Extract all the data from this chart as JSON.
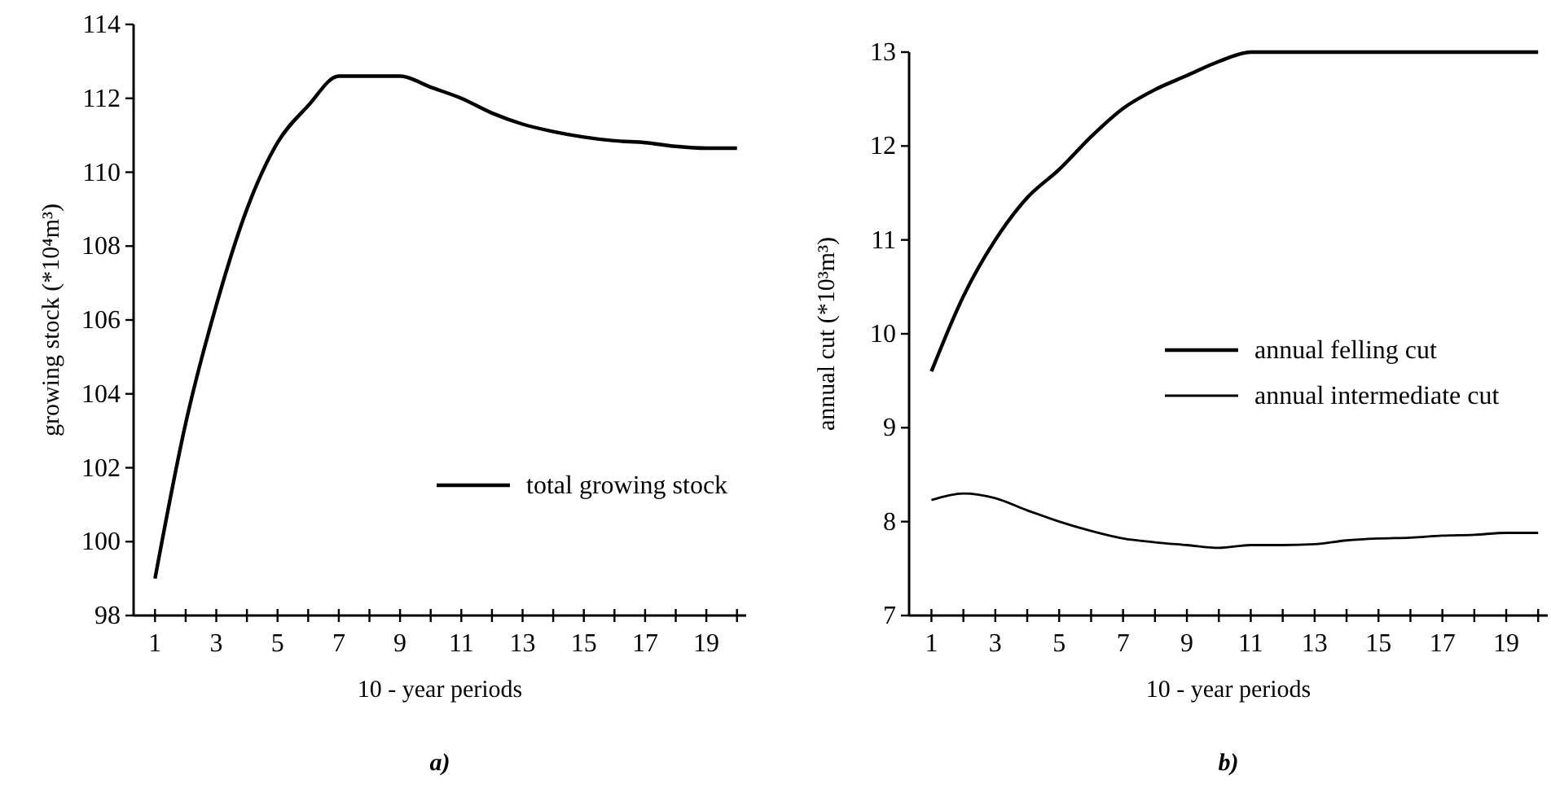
{
  "chart_data": [
    {
      "type": "line",
      "xlabel": "10 - year periods",
      "ylabel": "growing stock (*10⁴m³)",
      "annotations": [
        "a)"
      ],
      "legend": "right",
      "x": [
        1,
        2,
        3,
        4,
        5,
        6,
        7,
        8,
        9,
        10,
        11,
        12,
        13,
        14,
        15,
        16,
        17,
        18,
        19,
        20
      ],
      "xlim": [
        0.3,
        20.3
      ],
      "xticks": [
        1,
        {
          "value": 2,
          "label": null
        },
        3,
        {
          "value": 4,
          "label": null
        },
        5,
        {
          "value": 6,
          "label": null
        },
        7,
        {
          "value": 8,
          "label": null
        },
        9,
        {
          "value": 10,
          "label": null
        },
        11,
        {
          "value": 12,
          "label": null
        },
        13,
        {
          "value": 14,
          "label": null
        },
        15,
        {
          "value": 16,
          "label": null
        },
        17,
        {
          "value": 18,
          "label": null
        },
        19,
        {
          "value": 20,
          "label": null
        }
      ],
      "ylim": [
        98,
        114
      ],
      "yticks": [
        98,
        100,
        102,
        104,
        106,
        108,
        110,
        112,
        114
      ],
      "series": [
        {
          "name": "total growing stock",
          "color": "#000000",
          "values": [
            99.0,
            103.2,
            106.4,
            109.0,
            110.8,
            111.8,
            112.6,
            112.6,
            112.6,
            112.3,
            112.0,
            111.6,
            111.3,
            111.1,
            110.95,
            110.85,
            110.8,
            110.7,
            110.65,
            110.65
          ]
        }
      ]
    },
    {
      "type": "line",
      "xlabel": "10 - year periods",
      "ylabel": "annual cut (*10³m³)",
      "annotations": [
        "b)"
      ],
      "legend": "right",
      "x": [
        1,
        2,
        3,
        4,
        5,
        6,
        7,
        8,
        9,
        10,
        11,
        12,
        13,
        14,
        15,
        16,
        17,
        18,
        19,
        20
      ],
      "xlim": [
        0.3,
        20.3
      ],
      "xticks": [
        1,
        {
          "value": 2,
          "label": null
        },
        3,
        {
          "value": 4,
          "label": null
        },
        5,
        {
          "value": 6,
          "label": null
        },
        7,
        {
          "value": 8,
          "label": null
        },
        9,
        {
          "value": 10,
          "label": null
        },
        11,
        {
          "value": 12,
          "label": null
        },
        13,
        {
          "value": 14,
          "label": null
        },
        15,
        {
          "value": 16,
          "label": null
        },
        17,
        {
          "value": 18,
          "label": null
        },
        19,
        {
          "value": 20,
          "label": null
        }
      ],
      "ylim": [
        7,
        13
      ],
      "yticks": [
        7,
        8,
        9,
        10,
        11,
        12,
        13
      ],
      "series": [
        {
          "name": "annual felling cut",
          "color": "#000000",
          "values": [
            9.6,
            10.4,
            11.0,
            11.45,
            11.75,
            12.1,
            12.4,
            12.6,
            12.75,
            12.9,
            13,
            13,
            13,
            13,
            13,
            13,
            13,
            13,
            13,
            13
          ]
        },
        {
          "name": "annual intermediate cut",
          "color": "#000000",
          "values": [
            8.23,
            8.3,
            8.25,
            8.12,
            8.0,
            7.9,
            7.82,
            7.78,
            7.75,
            7.72,
            7.75,
            7.75,
            7.76,
            7.8,
            7.82,
            7.83,
            7.85,
            7.86,
            7.88,
            7.88
          ]
        }
      ]
    }
  ]
}
